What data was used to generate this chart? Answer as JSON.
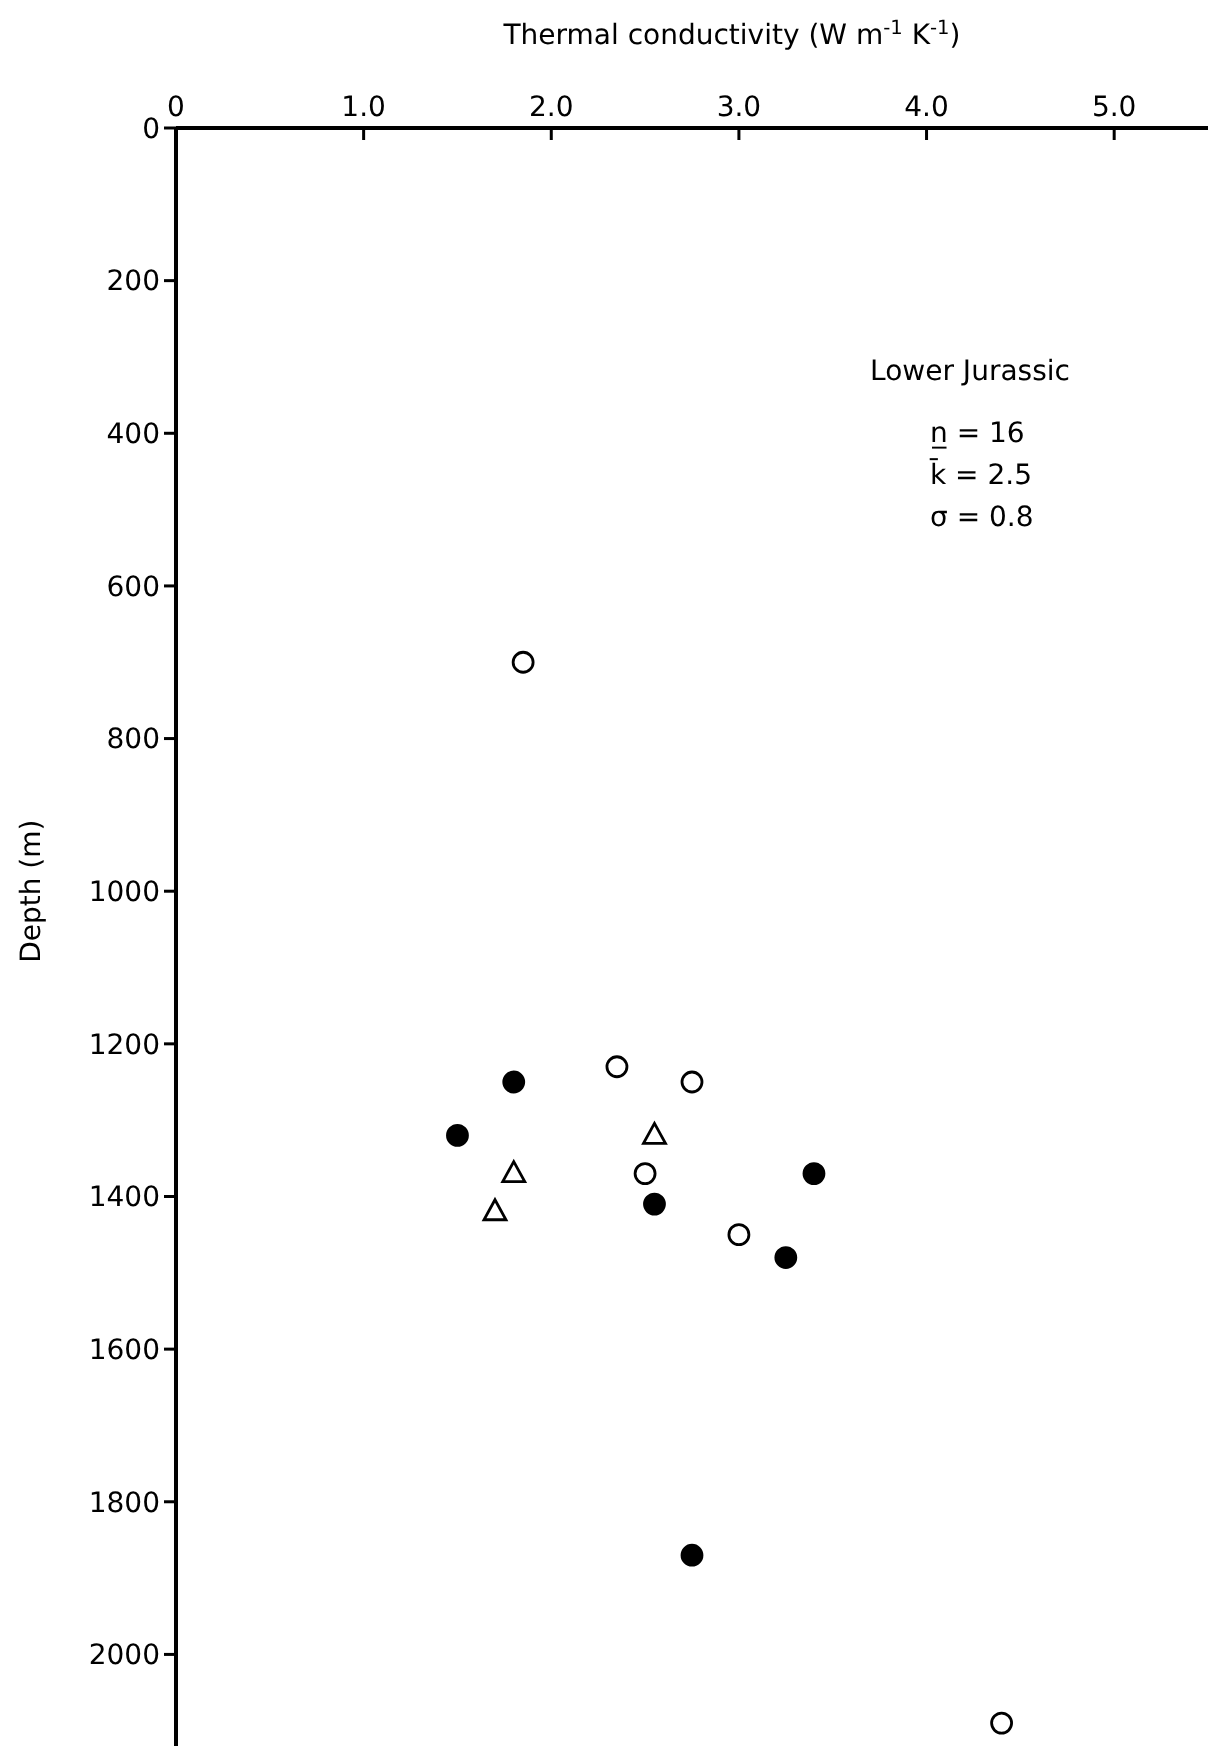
{
  "chart_data": {
    "type": "scatter",
    "xlabel": "Thermal conductivity (W m$^{-1}$ K$^{-1}$)",
    "ylabel": "Depth (m)",
    "xlim": [
      0,
      5.5
    ],
    "xticks": [
      0,
      {
        "value": 1,
        "label": "1.0"
      },
      {
        "value": 2,
        "label": "2.0"
      },
      {
        "value": 3,
        "label": "3.0"
      },
      {
        "value": 4,
        "label": "4.0"
      },
      {
        "value": 5,
        "label": "5.0"
      }
    ],
    "ylim": [
      2120,
      0
    ],
    "yticks": [
      0,
      200,
      400,
      600,
      800,
      1000,
      1200,
      1400,
      1600,
      1800,
      2000
    ],
    "annotations": [
      "Lower Jurassic",
      "n̲ = 16",
      "k̄ = 2.5",
      "σ = 0.8"
    ],
    "series": [
      {
        "marker": "circle",
        "color": "#ffffff",
        "x": [
          1.85,
          2.35,
          2.75,
          2.5,
          3.0,
          4.4
        ],
        "values": [
          700,
          1230,
          1250,
          1370,
          1450,
          2090
        ]
      },
      {
        "marker": "circle",
        "color": "#000000",
        "x": [
          1.8,
          1.5,
          2.55,
          3.4,
          3.25,
          2.75
        ],
        "values": [
          1250,
          1320,
          1410,
          1370,
          1480,
          1870
        ]
      },
      {
        "marker": "triangle",
        "color": "#ffffff",
        "x": [
          1.8,
          1.7,
          2.55
        ],
        "values": [
          1370,
          1420,
          1320
        ]
      }
    ]
  }
}
